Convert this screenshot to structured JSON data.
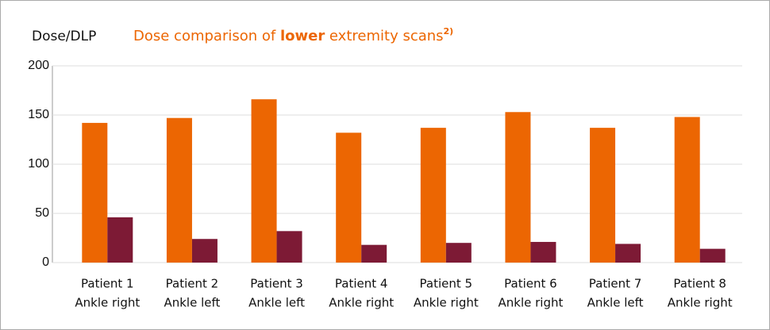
{
  "chart_data": {
    "type": "bar",
    "ylabel": "Dose/DLP",
    "title": [
      "Dose comparison of ",
      "lower",
      " extremity scans"
    ],
    "title_footnote": "2)",
    "categories": [
      [
        "Patient 1",
        "Ankle right"
      ],
      [
        "Patient 2",
        "Ankle left"
      ],
      [
        "Patient 3",
        "Ankle left"
      ],
      [
        "Patient 4",
        "Ankle right"
      ],
      [
        "Patient 5",
        "Ankle right"
      ],
      [
        "Patient 6",
        "Ankle right"
      ],
      [
        "Patient 7",
        "Ankle left"
      ],
      [
        "Patient 8",
        "Ankle right"
      ]
    ],
    "series": [
      {
        "color": "#ec6602",
        "values": [
          142,
          147,
          166,
          132,
          137,
          153,
          137,
          148
        ]
      },
      {
        "color": "#7d1a35",
        "values": [
          46,
          24,
          32,
          18,
          20,
          21,
          19,
          14
        ]
      }
    ],
    "ylim": [
      0,
      200
    ],
    "yticks": [
      0,
      50,
      100,
      150,
      200
    ],
    "grid": true
  }
}
